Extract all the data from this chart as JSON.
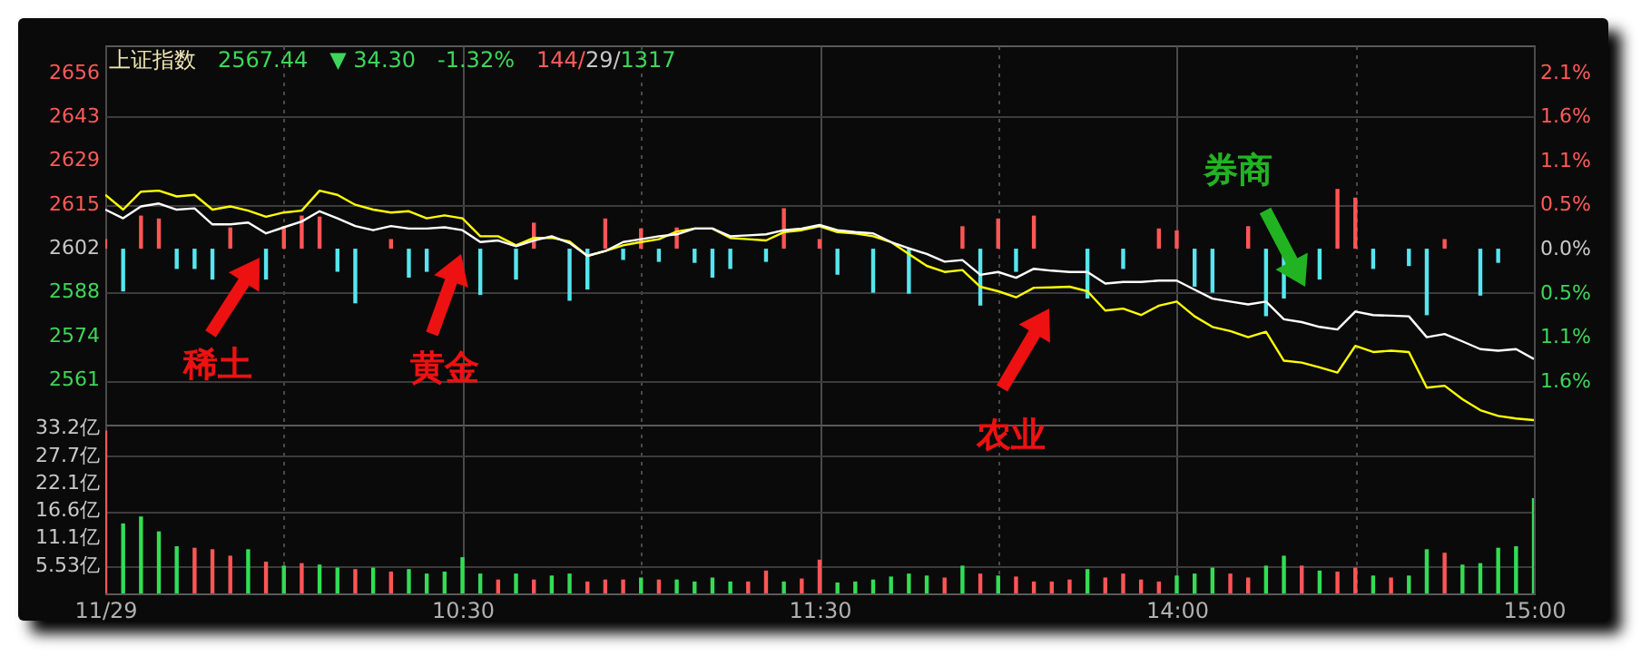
{
  "chart_data": [
    {
      "type": "line",
      "title": "上证指数",
      "subtitle": "2567.44 ▼ 34.30 -1.32% 144/29/1317",
      "annotations": [
        "稀土",
        "黄金",
        "农业",
        "券商"
      ],
      "categories": [
        null,
        null,
        null,
        null,
        null,
        null,
        null,
        null,
        null,
        null,
        null,
        null,
        null,
        null,
        null,
        null,
        null,
        null,
        null,
        null,
        null,
        null,
        null,
        null,
        null,
        null,
        null,
        null,
        null,
        null,
        null,
        null,
        null,
        null,
        null,
        null,
        null,
        null,
        null,
        null,
        null,
        null,
        null,
        null,
        null,
        null,
        null,
        null,
        null,
        null,
        null,
        null,
        null,
        null,
        null,
        null,
        null,
        null,
        null,
        null,
        null,
        null,
        null,
        null,
        null,
        null,
        null,
        null,
        null,
        null,
        null,
        null,
        null,
        null,
        null,
        null,
        null,
        null,
        null,
        null,
        null
      ],
      "tick_labels": "y",
      "ylim": [
        2547,
        2665
      ],
      "yticks": [
        {
          "value": 2656.38,
          "label": "2656"
        },
        {
          "value": 2642.72,
          "label": "2643"
        },
        {
          "value": 2629.06,
          "label": "2629"
        },
        {
          "value": 2615.4,
          "label": "2615"
        },
        {
          "value": 2601.74,
          "label": "2602"
        },
        {
          "value": 2588.08,
          "label": "2588"
        },
        {
          "value": 2574.42,
          "label": "2574"
        },
        {
          "value": 2560.76,
          "label": "2561"
        }
      ],
      "y2lim": [
        -2.1,
        2.43
      ],
      "y2ticks": [
        {
          "value": 2.1,
          "label": "2.1%"
        },
        {
          "value": 1.58,
          "label": "1.6%"
        },
        {
          "value": 1.05,
          "label": "1.1%"
        },
        {
          "value": 0.53,
          "label": "0.5%"
        },
        {
          "value": 0,
          "label": "0.0%"
        },
        {
          "value": -0.53,
          "label": "0.5%"
        },
        {
          "value": -1.05,
          "label": "1.1%"
        },
        {
          "value": -1.58,
          "label": "1.6%"
        }
      ],
      "grid": true,
      "series": [
        {
          "type": "bar",
          "values": [
            3.0,
            -13.3,
            10.3,
            9.4,
            -6.3,
            -6.3,
            -9.6,
            6.6,
            null,
            -9.6,
            7.0,
            10.3,
            10.0,
            -7.2,
            -17.0,
            null,
            3.0,
            -9.0,
            -7.2,
            null,
            null,
            -14.4,
            null,
            -9.6,
            8.1,
            null,
            -16.2,
            -12.7,
            9.4,
            -3.5,
            6.3,
            -4.1,
            6.6,
            -4.4,
            -9.0,
            -6.3,
            null,
            -4.1,
            12.6,
            null,
            3.0,
            -8.1,
            null,
            -13.7,
            null,
            -14.0,
            null,
            null,
            7.0,
            -17.7,
            9.4,
            -7.2,
            10.3,
            null,
            null,
            -15.5,
            null,
            -6.3,
            null,
            6.3,
            5.7,
            -11.8,
            -13.7,
            null,
            7.0,
            -21.0,
            -15.5,
            null,
            -9.6,
            18.6,
            15.9,
            -6.3,
            null,
            -5.4,
            -20.7,
            3.0,
            null,
            -14.6,
            -4.4,
            null,
            null
          ],
          "base": [
            2601.74,
            2601.74,
            2601.74,
            2601.74,
            2601.74,
            2601.74,
            2601.74,
            2601.74,
            null,
            2601.74,
            2601.74,
            2601.74,
            2601.74,
            2601.74,
            2601.74,
            null,
            2601.74,
            2601.74,
            2601.74,
            null,
            null,
            2601.74,
            null,
            2601.74,
            2601.74,
            null,
            2601.74,
            2601.74,
            2601.74,
            2601.74,
            2601.74,
            2601.74,
            2601.74,
            2601.74,
            2601.74,
            2601.74,
            null,
            2601.74,
            2601.74,
            null,
            2601.74,
            2601.74,
            null,
            2601.74,
            null,
            2601.74,
            null,
            null,
            2601.74,
            2601.74,
            2601.74,
            2601.74,
            2601.74,
            null,
            null,
            2601.74,
            null,
            2601.74,
            null,
            2601.74,
            2601.74,
            2601.74,
            2601.74,
            null,
            2601.74,
            2601.74,
            2601.74,
            null,
            2601.74,
            2601.74,
            2601.74,
            2601.74,
            null,
            2601.74,
            2601.74,
            2601.74,
            null,
            2601.74,
            2601.74,
            null,
            null
          ],
          "colors": [
            "#ff5555",
            "#55e6ee",
            "#ff5555",
            "#ff5555",
            "#55e6ee",
            "#55e6ee",
            "#55e6ee",
            "#ff5555",
            null,
            "#55e6ee",
            "#ff5555",
            "#ff5555",
            "#ff5555",
            "#55e6ee",
            "#55e6ee",
            null,
            "#ff5555",
            "#55e6ee",
            "#55e6ee",
            null,
            null,
            "#55e6ee",
            null,
            "#55e6ee",
            "#ff5555",
            null,
            "#55e6ee",
            "#55e6ee",
            "#ff5555",
            "#55e6ee",
            "#ff5555",
            "#55e6ee",
            "#ff5555",
            "#55e6ee",
            "#55e6ee",
            "#55e6ee",
            null,
            "#55e6ee",
            "#ff5555",
            null,
            "#ff5555",
            "#55e6ee",
            null,
            "#55e6ee",
            null,
            "#55e6ee",
            null,
            null,
            "#ff5555",
            "#55e6ee",
            "#ff5555",
            "#55e6ee",
            "#ff5555",
            null,
            null,
            "#55e6ee",
            null,
            "#55e6ee",
            null,
            "#ff5555",
            "#ff5555",
            "#55e6ee",
            "#55e6ee",
            null,
            "#ff5555",
            "#55e6ee",
            "#55e6ee",
            null,
            "#55e6ee",
            "#ff5555",
            "#ff5555",
            "#55e6ee",
            null,
            "#55e6ee",
            "#55e6ee",
            "#ff5555",
            null,
            "#55e6ee",
            "#55e6ee",
            null,
            null
          ]
        },
        {
          "color": "#ffff00",
          "values": [
            2618.5,
            2613.9,
            2619.5,
            2619.8,
            2618.0,
            2618.5,
            2613.9,
            2614.9,
            2613.6,
            2611.7,
            2613.0,
            2613.6,
            2619.8,
            2618.5,
            2615.4,
            2613.9,
            2613.0,
            2613.4,
            2611.2,
            2612.1,
            2611.2,
            2605.6,
            2605.6,
            2602.8,
            2605.1,
            2605.1,
            2604.0,
            2599.5,
            2601.0,
            2602.8,
            2603.8,
            2604.7,
            2607.1,
            2608.0,
            2608.0,
            2605.1,
            2604.7,
            2604.3,
            2606.9,
            2607.5,
            2608.7,
            2606.9,
            2606.5,
            2605.6,
            2603.8,
            2600.1,
            2596.4,
            2594.5,
            2595.1,
            2589.9,
            2588.5,
            2586.6,
            2589.6,
            2589.7,
            2589.9,
            2588.5,
            2582.5,
            2583.1,
            2581.1,
            2584.0,
            2585.3,
            2580.7,
            2577.4,
            2576.1,
            2574.2,
            2575.9,
            2566.9,
            2566.3,
            2564.8,
            2563.2,
            2571.5,
            2569.6,
            2570.0,
            2569.6,
            2558.5,
            2559.1,
            2554.9,
            2551.5,
            2549.7,
            2548.9,
            2548.4
          ]
        },
        {
          "color": "#ffffff",
          "values": [
            2613.9,
            2611.2,
            2614.9,
            2615.8,
            2613.9,
            2614.3,
            2609.3,
            2609.3,
            2609.9,
            2606.5,
            2608.4,
            2610.2,
            2613.4,
            2611.2,
            2608.8,
            2607.5,
            2608.8,
            2608.0,
            2608.0,
            2608.4,
            2607.5,
            2603.8,
            2604.3,
            2602.5,
            2604.3,
            2605.6,
            2603.5,
            2599.5,
            2601.0,
            2603.8,
            2604.7,
            2605.6,
            2606.2,
            2608.0,
            2608.0,
            2605.6,
            2605.9,
            2606.2,
            2607.5,
            2608.0,
            2609.1,
            2607.5,
            2606.9,
            2606.5,
            2603.8,
            2601.9,
            2600.1,
            2597.7,
            2598.2,
            2593.6,
            2594.5,
            2592.7,
            2595.5,
            2594.9,
            2594.5,
            2594.5,
            2590.9,
            2591.4,
            2591.4,
            2591.8,
            2591.8,
            2589.0,
            2586.2,
            2585.3,
            2584.4,
            2585.3,
            2579.8,
            2578.9,
            2577.4,
            2576.6,
            2582.2,
            2581.1,
            2580.9,
            2580.7,
            2574.2,
            2575.2,
            2572.9,
            2570.5,
            2570.0,
            2570.5,
            2567.4
          ]
        }
      ]
    },
    {
      "type": "bar",
      "categories": [
        "11/29",
        null,
        null,
        null,
        null,
        null,
        null,
        null,
        null,
        null,
        null,
        null,
        null,
        null,
        null,
        null,
        null,
        null,
        null,
        null,
        "10:30",
        null,
        null,
        null,
        null,
        null,
        null,
        null,
        null,
        null,
        null,
        null,
        null,
        null,
        null,
        null,
        null,
        null,
        null,
        null,
        "11:30",
        null,
        null,
        null,
        null,
        null,
        null,
        null,
        null,
        null,
        null,
        null,
        null,
        null,
        null,
        null,
        null,
        null,
        null,
        null,
        "14:00",
        null,
        null,
        null,
        null,
        null,
        null,
        null,
        null,
        null,
        null,
        null,
        null,
        null,
        null,
        null,
        null,
        null,
        null,
        null,
        "15:00"
      ],
      "values": [
        32.8,
        14.1,
        15.5,
        12.5,
        9.5,
        9.2,
        8.9,
        7.6,
        8.9,
        6.4,
        5.6,
        6.1,
        5.8,
        5.2,
        4.9,
        5.2,
        4.4,
        4.9,
        4.0,
        4.4,
        7.3,
        4.0,
        2.8,
        4.0,
        2.8,
        3.6,
        4.0,
        2.4,
        2.8,
        2.8,
        3.2,
        2.8,
        2.8,
        2.4,
        3.2,
        2.4,
        2.4,
        4.6,
        2.4,
        3.0,
        6.8,
        2.2,
        2.4,
        2.8,
        3.4,
        4.0,
        3.6,
        3.2,
        5.6,
        4.0,
        3.6,
        3.4,
        2.4,
        2.4,
        2.8,
        4.9,
        3.2,
        4.0,
        2.8,
        2.4,
        3.6,
        4.0,
        5.2,
        4.0,
        3.2,
        5.6,
        7.6,
        5.6,
        4.6,
        4.4,
        5.2,
        3.6,
        3.2,
        3.6,
        8.9,
        8.2,
        5.8,
        6.1,
        9.2,
        9.5,
        19.2
      ],
      "colors": [
        "#ff5555",
        "#33dd55",
        "#33dd55",
        "#33dd55",
        "#33dd55",
        "#ff5555",
        "#ff5555",
        "#ff5555",
        "#33dd55",
        "#ff5555",
        "#33dd55",
        "#ff5555",
        "#33dd55",
        "#33dd55",
        "#ff5555",
        "#33dd55",
        "#ff5555",
        "#33dd55",
        "#33dd55",
        "#33dd55",
        "#33dd55",
        "#33dd55",
        "#ff5555",
        "#33dd55",
        "#ff5555",
        "#33dd55",
        "#33dd55",
        "#ff5555",
        "#ff5555",
        "#ff5555",
        "#33dd55",
        "#ff5555",
        "#33dd55",
        "#33dd55",
        "#33dd55",
        "#33dd55",
        "#ff5555",
        "#ff5555",
        "#33dd55",
        "#ff5555",
        "#ff5555",
        "#33dd55",
        "#33dd55",
        "#33dd55",
        "#33dd55",
        "#33dd55",
        "#33dd55",
        "#ff5555",
        "#33dd55",
        "#ff5555",
        "#33dd55",
        "#ff5555",
        "#ff5555",
        "#ff5555",
        "#ff5555",
        "#33dd55",
        "#ff5555",
        "#ff5555",
        "#ff5555",
        "#ff5555",
        "#33dd55",
        "#33dd55",
        "#33dd55",
        "#ff5555",
        "#ff5555",
        "#33dd55",
        "#33dd55",
        "#ff5555",
        "#33dd55",
        "#ff5555",
        "#ff5555",
        "#33dd55",
        "#ff5555",
        "#33dd55",
        "#33dd55",
        "#ff5555",
        "#33dd55",
        "#33dd55",
        "#33dd55",
        "#33dd55",
        "#33dd55"
      ],
      "ylim": [
        0,
        34
      ],
      "yticks": [
        {
          "value": 5.53,
          "label": "5.53亿"
        },
        {
          "value": 11.06,
          "label": "11.1亿"
        },
        {
          "value": 16.59,
          "label": "16.6亿"
        },
        {
          "value": 22.12,
          "label": "22.1亿"
        },
        {
          "value": 27.65,
          "label": "27.7亿"
        },
        {
          "value": 33.18,
          "label": "33.2亿"
        }
      ],
      "grid": true
    }
  ]
}
